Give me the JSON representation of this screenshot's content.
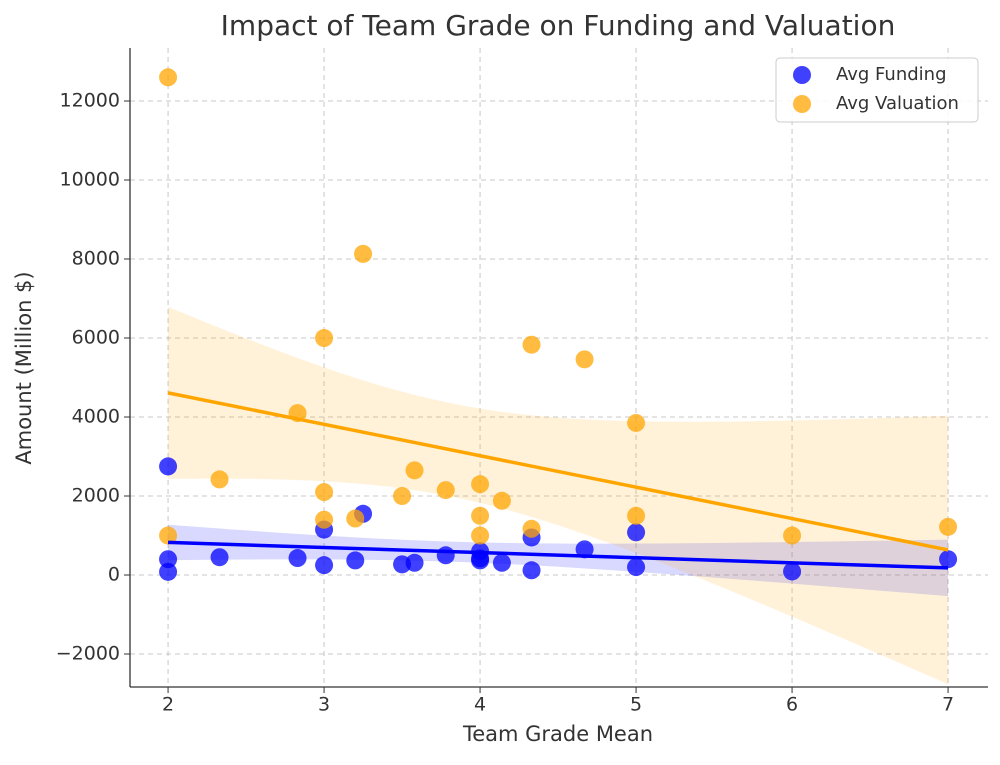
{
  "chart_data": {
    "type": "scatter",
    "title": "Impact of Team Grade on Funding and Valuation",
    "x_label": "Team Grade Mean",
    "y_label": "Amount (Million $)",
    "xlim": [
      1.756,
      7.256
    ],
    "ylim": [
      -2835,
      13342
    ],
    "xticks": [
      2,
      3,
      4,
      5,
      6,
      7
    ],
    "yticks": [
      {
        "value": -2000,
        "label": "−2000"
      },
      0,
      2000,
      4000,
      6000,
      8000,
      10000,
      12000
    ],
    "grid": true,
    "legend": "upper right",
    "regression": true,
    "series": [
      {
        "name": "Avg Funding",
        "color": "#0000ff",
        "x": [
          2,
          2,
          2,
          2.33,
          2.83,
          3,
          3,
          3.2,
          3.25,
          3.5,
          3.58,
          3.78,
          4,
          4,
          4,
          4.14,
          4.33,
          4.33,
          4.67,
          5,
          5,
          6,
          7
        ],
        "values": [
          2750,
          400,
          80,
          450,
          430,
          1150,
          250,
          370,
          1550,
          270,
          310,
          500,
          600,
          370,
          420,
          310,
          950,
          120,
          650,
          1080,
          200,
          90,
          400
        ]
      },
      {
        "name": "Avg Valuation",
        "color": "#ffa500",
        "x": [
          2,
          2,
          2.33,
          2.83,
          3,
          3,
          3,
          3.2,
          3.25,
          3.5,
          3.58,
          3.78,
          4,
          4,
          4,
          4.14,
          4.33,
          4.33,
          4.67,
          5,
          5,
          6,
          7
        ],
        "values": [
          12600,
          1000,
          2420,
          4100,
          6000,
          2100,
          1400,
          1430,
          8130,
          2000,
          2650,
          2150,
          2300,
          1500,
          1000,
          1880,
          5830,
          1170,
          5460,
          3850,
          1500,
          1000,
          1220
        ]
      }
    ]
  }
}
